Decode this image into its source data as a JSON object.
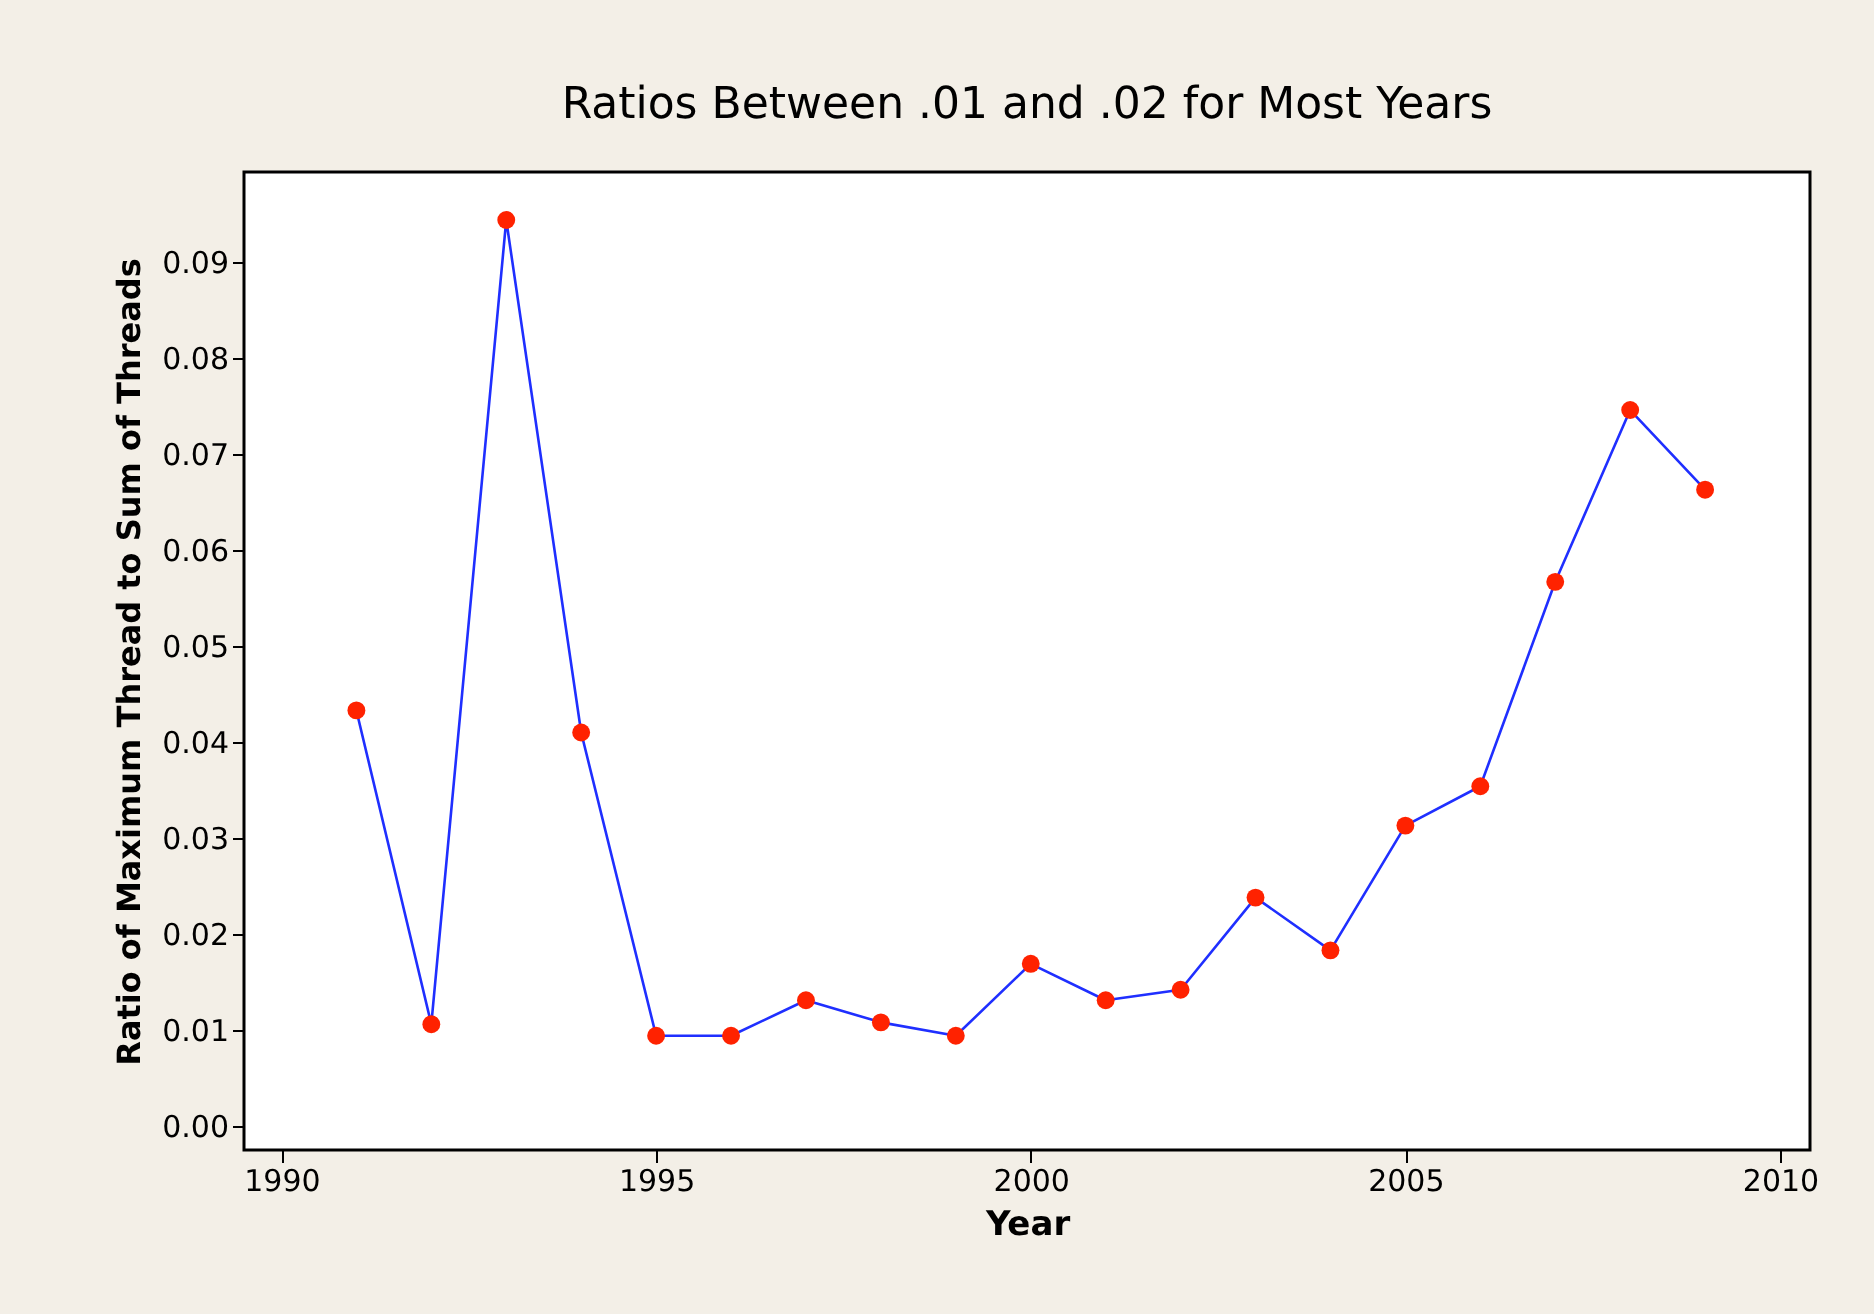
{
  "chart_data": {
    "type": "line",
    "title": "Ratios Between .01 and .02 for Most Years",
    "xlabel": "Year",
    "ylabel": "Ratio of Maximum Thread to Sum of Threads",
    "x": [
      1991,
      1992,
      1993,
      1994,
      1995,
      1996,
      1997,
      1998,
      1999,
      2000,
      2001,
      2002,
      2003,
      2004,
      2005,
      2006,
      2007,
      2008,
      2009
    ],
    "series": [
      {
        "color": "#1f2fff",
        "colors": [
          "#ff2200",
          "#ff2200",
          "#ff2200",
          "#ff2200",
          "#ff2200",
          "#ff2200",
          "#ff2200",
          "#ff2200",
          "#ff2200",
          "#ff2200",
          "#ff2200",
          "#ff2200",
          "#ff2200",
          "#ff2200",
          "#ff2200",
          "#ff2200",
          "#ff2200",
          "#ff2200",
          "#ff2200"
        ],
        "values": [
          0.0433,
          0.0106,
          0.0944,
          0.041,
          0.0094,
          0.0094,
          0.0131,
          0.0108,
          0.0094,
          0.0169,
          0.0131,
          0.0142,
          0.0238,
          0.0183,
          0.0313,
          0.0354,
          0.0567,
          0.0746,
          0.0663
        ]
      }
    ],
    "xlim": [
      1989.5,
      2010.4
    ],
    "xticks": [
      1990,
      1995,
      2000,
      2005,
      2010
    ],
    "ylim": [
      -0.0025,
      0.0994
    ],
    "yticks": [
      {
        "value": 0,
        "label": "0.00"
      },
      {
        "value": 0.01,
        "label": "0.01"
      },
      {
        "value": 0.02,
        "label": "0.02"
      },
      {
        "value": 0.03,
        "label": "0.03"
      },
      {
        "value": 0.04,
        "label": "0.04"
      },
      {
        "value": 0.05,
        "label": "0.05"
      },
      {
        "value": 0.06,
        "label": "0.06"
      },
      {
        "value": 0.07,
        "label": "0.07"
      },
      {
        "value": 0.08,
        "label": "0.08"
      },
      {
        "value": 0.09,
        "label": "0.09"
      }
    ],
    "marker": "circle",
    "line_style": "solid"
  }
}
